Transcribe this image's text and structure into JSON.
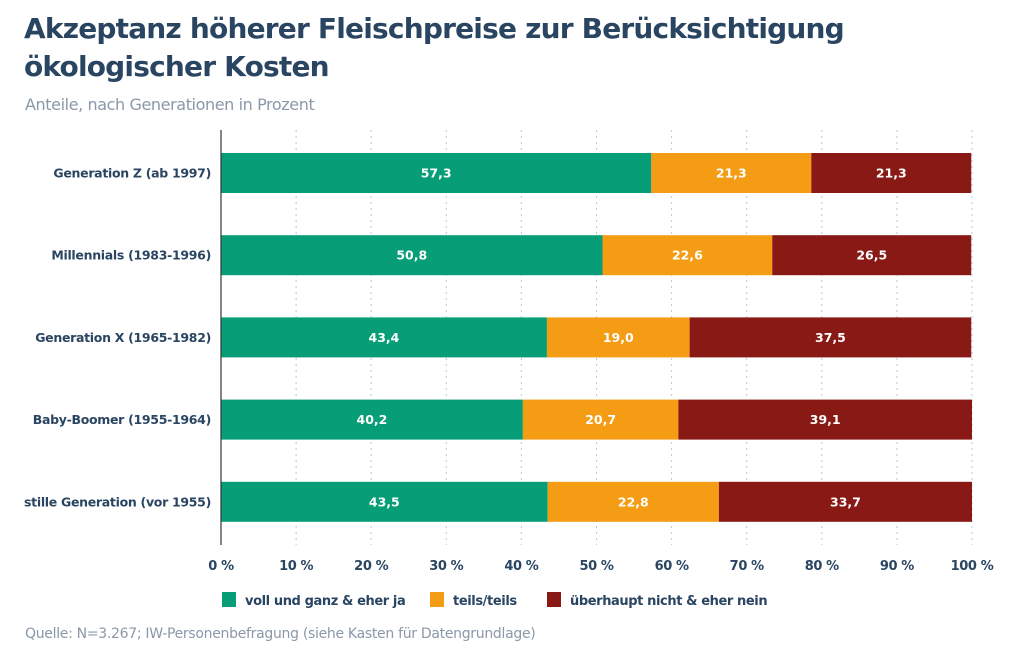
{
  "header": {
    "title_line1": "Akzeptanz höherer Fleischpreise zur Berücksichtigung",
    "title_line2": "ökologischer Kosten",
    "subtitle": "Anteile, nach Generationen in Prozent"
  },
  "footer": {
    "source": "Quelle: N=3.267; IW-Personenbefragung (siehe Kasten für Datengrundlage)"
  },
  "chart_data": {
    "type": "bar",
    "orientation": "horizontal",
    "stacked": true,
    "title": "Akzeptanz höherer Fleischpreise zur Berücksichtigung ökologischer Kosten",
    "subtitle": "Anteile, nach Generationen in Prozent",
    "xlabel": "",
    "ylabel": "",
    "xlim": [
      0,
      100
    ],
    "x_ticks": [
      0,
      10,
      20,
      30,
      40,
      50,
      60,
      70,
      80,
      90,
      100
    ],
    "x_tick_labels": [
      "0 %",
      "10 %",
      "20 %",
      "30 %",
      "40 %",
      "50 %",
      "60 %",
      "70 %",
      "80 %",
      "90 %",
      "100 %"
    ],
    "grid": "vertical dotted",
    "legend_position": "bottom",
    "categories": [
      "Generation Z (ab 1997)",
      "Millennials (1983-1996)",
      "Generation X (1965-1982)",
      "Baby-Boomer (1955-1964)",
      "stille Generation (vor 1955)"
    ],
    "series": [
      {
        "name": "voll und ganz & eher ja",
        "color": "#079e77",
        "values": [
          57.3,
          50.8,
          43.4,
          40.2,
          43.5
        ],
        "labels": [
          "57,3",
          "50,8",
          "43,4",
          "40,2",
          "43,5"
        ]
      },
      {
        "name": "teils/teils",
        "color": "#f39c14",
        "values": [
          21.3,
          22.6,
          19.0,
          20.7,
          22.8
        ],
        "labels": [
          "21,3",
          "22,6",
          "19,0",
          "20,7",
          "22,8"
        ]
      },
      {
        "name": "überhaupt nicht & eher nein",
        "color": "#881914",
        "values": [
          21.3,
          26.5,
          37.5,
          39.1,
          33.7
        ],
        "labels": [
          "21,3",
          "26,5",
          "37,5",
          "39,1",
          "33,7"
        ]
      }
    ]
  }
}
